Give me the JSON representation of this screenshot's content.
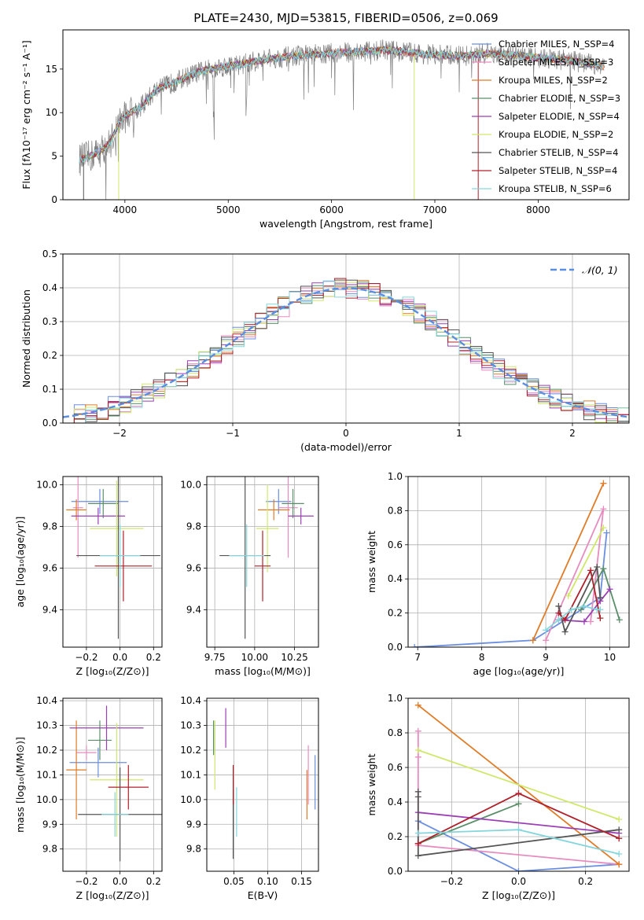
{
  "figure_title": "PLATE=2430, MJD=53815, FIBERID=0506, z=0.069",
  "colors": {
    "chab_miles": "#6b8ee0",
    "salp_miles": "#e68cbf",
    "krou_miles": "#e07b27",
    "chab_elodie": "#5a8f6a",
    "salp_elodie": "#9b3fb5",
    "krou_elodie": "#cfe86a",
    "chab_stelib": "#555555",
    "salp_stelib": "#b0202a",
    "krou_stelib": "#84d6dc"
  },
  "chart_data": [
    {
      "type": "line",
      "panel": "spectrum",
      "xlabel": "wavelength [Angstrom, rest frame]",
      "ylabel": "Flux [fλ10⁻¹⁷ erg cm⁻² s⁻¹ A⁻¹]",
      "xlim": [
        3400,
        8880
      ],
      "ylim": [
        0,
        19.5
      ],
      "xticks": [
        "4000",
        "5000",
        "6000",
        "7000",
        "8000"
      ],
      "yticks": [
        "0",
        "5",
        "10",
        "15"
      ],
      "legend_position": "top-right",
      "legend": [
        {
          "label": "Chabrier MILES, N_SSP=4",
          "color": "#6b8ee0"
        },
        {
          "label": "Salpeter MILES, N_SSP=3",
          "color": "#e68cbf"
        },
        {
          "label": "Kroupa MILES, N_SSP=2",
          "color": "#e07b27"
        },
        {
          "label": "Chabrier ELODIE, N_SSP=3",
          "color": "#5a8f6a"
        },
        {
          "label": "Salpeter ELODIE, N_SSP=4",
          "color": "#9b3fb5"
        },
        {
          "label": "Kroupa ELODIE, N_SSP=2",
          "color": "#cfe86a"
        },
        {
          "label": "Chabrier STELIB, N_SSP=4",
          "color": "#555555"
        },
        {
          "label": "Salpeter STELIB, N_SSP=4",
          "color": "#b0202a"
        },
        {
          "label": "Kroupa STELIB, N_SSP=6",
          "color": "#84d6dc"
        }
      ],
      "continuum": {
        "x": [
          3560,
          3650,
          3750,
          3850,
          3950,
          4050,
          4150,
          4300,
          4500,
          4700,
          4900,
          5100,
          5300,
          5500,
          5700,
          5900,
          6100,
          6300,
          6500,
          6700,
          6900,
          7100,
          7300,
          7500,
          7700,
          7900,
          8100,
          8300,
          8500,
          8640
        ],
        "y": [
          4.6,
          4.9,
          5.5,
          6.4,
          9.0,
          10.0,
          10.6,
          12.6,
          13.6,
          14.6,
          15.2,
          15.5,
          16.0,
          16.3,
          16.6,
          16.7,
          16.9,
          17.0,
          17.2,
          17.0,
          16.7,
          16.6,
          16.5,
          16.8,
          16.7,
          16.4,
          16.2,
          16.0,
          15.6,
          15.3
        ]
      }
    },
    {
      "type": "bar",
      "panel": "residual-histogram",
      "xlabel": "(data-model)/error",
      "ylabel": "Normed distribution",
      "xlim": [
        -2.5,
        2.5
      ],
      "ylim": [
        0,
        0.5
      ],
      "xticks": [
        "−2",
        "−1",
        "0",
        "1",
        "2"
      ],
      "yticks": [
        "0.0",
        "0.1",
        "0.2",
        "0.3",
        "0.4",
        "0.5"
      ],
      "bin_width": 0.1,
      "legend_position": "top-right",
      "legend": [
        {
          "label": "𝒩(0, 1)",
          "color": "#5a8ee0"
        }
      ],
      "reference_curve": "normal(0,1)"
    },
    {
      "type": "scatter",
      "panel": "age-vs-Z",
      "xlabel": "Z [log₁₀(Z/Z⊙)]",
      "ylabel": "age  [log₁₀(age/yr)]",
      "xlim": [
        -0.34,
        0.25
      ],
      "ylim": [
        9.22,
        10.04
      ],
      "xticks": [
        "−0.2",
        "0.0",
        "0.2"
      ],
      "yticks": [
        "9.4",
        "9.6",
        "9.8",
        "10.0"
      ],
      "series": [
        {
          "color": "#6b8ee0",
          "x": -0.12,
          "y": 9.92,
          "xerr": 0.17,
          "yerr": 0.06
        },
        {
          "color": "#e68cbf",
          "x": -0.25,
          "y": 9.89,
          "xerr": 0.03,
          "yerr": 0.24
        },
        {
          "color": "#e07b27",
          "x": -0.26,
          "y": 9.88,
          "xerr": 0.06,
          "yerr": 0.05
        },
        {
          "color": "#5a8f6a",
          "x": -0.1,
          "y": 9.91,
          "xerr": 0.09,
          "yerr": 0.07
        },
        {
          "color": "#9b3fb5",
          "x": -0.13,
          "y": 9.85,
          "xerr": 0.16,
          "yerr": 0.04
        },
        {
          "color": "#cfe86a",
          "x": -0.02,
          "y": 9.79,
          "xerr": 0.16,
          "yerr": 0.23
        },
        {
          "color": "#555555",
          "x": -0.01,
          "y": 9.66,
          "xerr": 0.25,
          "yerr": 0.4
        },
        {
          "color": "#b0202a",
          "x": 0.02,
          "y": 9.61,
          "xerr": 0.17,
          "yerr": 0.17
        },
        {
          "color": "#84d6dc",
          "x": 0.0,
          "y": 9.66,
          "xerr": 0.12,
          "yerr": 0.15
        }
      ]
    },
    {
      "type": "scatter",
      "panel": "age-vs-mass",
      "xlabel": "mass [log₁₀(M/M⊙)]",
      "ylabel": "",
      "xlim": [
        9.7,
        10.4
      ],
      "ylim": [
        9.22,
        10.04
      ],
      "xticks": [
        "9.75",
        "10.00",
        "10.25"
      ],
      "yticks": [
        "9.4",
        "9.6",
        "9.8",
        "10.0"
      ],
      "series": [
        {
          "color": "#6b8ee0",
          "x": 10.15,
          "y": 9.92,
          "xerr": 0.08,
          "yerr": 0.06
        },
        {
          "color": "#e68cbf",
          "x": 10.21,
          "y": 9.89,
          "xerr": 0.06,
          "yerr": 0.24
        },
        {
          "color": "#e07b27",
          "x": 10.12,
          "y": 9.88,
          "xerr": 0.1,
          "yerr": 0.05
        },
        {
          "color": "#5a8f6a",
          "x": 10.24,
          "y": 9.91,
          "xerr": 0.07,
          "yerr": 0.07
        },
        {
          "color": "#9b3fb5",
          "x": 10.29,
          "y": 9.85,
          "xerr": 0.08,
          "yerr": 0.04
        },
        {
          "color": "#cfe86a",
          "x": 10.08,
          "y": 9.79,
          "xerr": 0.07,
          "yerr": 0.21
        },
        {
          "color": "#555555",
          "x": 9.94,
          "y": 9.66,
          "xerr": 0.16,
          "yerr": 0.4
        },
        {
          "color": "#b0202a",
          "x": 10.05,
          "y": 9.61,
          "xerr": 0.05,
          "yerr": 0.17
        },
        {
          "color": "#84d6dc",
          "x": 9.95,
          "y": 9.66,
          "xerr": 0.11,
          "yerr": 0.15
        }
      ]
    },
    {
      "type": "line",
      "panel": "massweight-vs-age",
      "xlabel": "age  [log₁₀(age/yr)]",
      "ylabel": "mass weight",
      "xlim": [
        6.85,
        10.3
      ],
      "ylim": [
        0,
        1.0
      ],
      "xticks": [
        "7",
        "8",
        "9",
        "10"
      ],
      "yticks": [
        "0.0",
        "0.2",
        "0.4",
        "0.6",
        "0.8",
        "1.0"
      ],
      "series": [
        {
          "color": "#6b8ee0",
          "x": [
            6.95,
            8.8,
            9.85,
            9.95
          ],
          "y": [
            0.0,
            0.04,
            0.29,
            0.67
          ]
        },
        {
          "color": "#e68cbf",
          "x": [
            9.0,
            9.9,
            9.7
          ],
          "y": [
            0.04,
            0.81,
            0.15
          ]
        },
        {
          "color": "#e07b27",
          "x": [
            8.8,
            9.9
          ],
          "y": [
            0.04,
            0.96
          ]
        },
        {
          "color": "#5a8f6a",
          "x": [
            9.55,
            9.9,
            10.15
          ],
          "y": [
            0.22,
            0.46,
            0.16
          ]
        },
        {
          "color": "#9b3fb5",
          "x": [
            9.2,
            9.6,
            9.85,
            10.0
          ],
          "y": [
            0.16,
            0.15,
            0.27,
            0.34
          ]
        },
        {
          "color": "#cfe86a",
          "x": [
            9.35,
            9.9
          ],
          "y": [
            0.3,
            0.7
          ]
        },
        {
          "color": "#555555",
          "x": [
            9.2,
            9.3,
            9.8,
            9.85
          ],
          "y": [
            0.24,
            0.09,
            0.47,
            0.29
          ]
        },
        {
          "color": "#b0202a",
          "x": [
            9.2,
            9.3,
            9.7,
            9.85
          ],
          "y": [
            0.2,
            0.16,
            0.45,
            0.17
          ]
        },
        {
          "color": "#84d6dc",
          "x": [
            9.0,
            9.2,
            9.4,
            9.6,
            9.8,
            9.85
          ],
          "y": [
            0.1,
            0.16,
            0.22,
            0.24,
            0.22,
            0.22
          ]
        }
      ]
    },
    {
      "type": "scatter",
      "panel": "mass-vs-Z",
      "xlabel": "Z [log₁₀(Z/Z⊙)]",
      "ylabel": "mass [log₁₀(M/M⊙)]",
      "xlim": [
        -0.34,
        0.25
      ],
      "ylim": [
        9.71,
        10.41
      ],
      "xticks": [
        "−0.2",
        "0.0",
        "0.2"
      ],
      "yticks": [
        "9.8",
        "9.9",
        "10.0",
        "10.1",
        "10.2",
        "10.3",
        "10.4"
      ],
      "series": [
        {
          "color": "#6b8ee0",
          "x": -0.13,
          "y": 10.15,
          "xerr": 0.17,
          "yerr": 0.06
        },
        {
          "color": "#e68cbf",
          "x": -0.2,
          "y": 10.19,
          "xerr": 0.06,
          "yerr": 0.03
        },
        {
          "color": "#e07b27",
          "x": -0.26,
          "y": 10.12,
          "xerr": 0.06,
          "yerr": 0.2
        },
        {
          "color": "#5a8f6a",
          "x": -0.12,
          "y": 10.24,
          "xerr": 0.07,
          "yerr": 0.08
        },
        {
          "color": "#9b3fb5",
          "x": -0.08,
          "y": 10.29,
          "xerr": 0.22,
          "yerr": 0.09
        },
        {
          "color": "#cfe86a",
          "x": -0.02,
          "y": 10.08,
          "xerr": 0.16,
          "yerr": 0.23
        },
        {
          "color": "#555555",
          "x": 0.0,
          "y": 9.94,
          "xerr": 0.25,
          "yerr": 0.19
        },
        {
          "color": "#b0202a",
          "x": 0.05,
          "y": 10.05,
          "xerr": 0.12,
          "yerr": 0.09
        },
        {
          "color": "#84d6dc",
          "x": -0.03,
          "y": 9.94,
          "xerr": 0.08,
          "yerr": 0.09
        }
      ]
    },
    {
      "type": "scatter",
      "panel": "mass-vs-EBV",
      "xlabel": "E(B-V)",
      "ylabel": "",
      "xlim": [
        0.01,
        0.175
      ],
      "ylim": [
        9.71,
        10.41
      ],
      "xticks": [
        "0.05",
        "0.10",
        "0.15"
      ],
      "yticks": [
        "9.8",
        "9.9",
        "10.0",
        "10.1",
        "10.2",
        "10.3",
        "10.4"
      ],
      "series": [
        {
          "color": "#6b8ee0",
          "x": 0.17,
          "y": 10.07,
          "yerr": 0.11
        },
        {
          "color": "#e68cbf",
          "x": 0.16,
          "y": 10.1,
          "yerr": 0.12
        },
        {
          "color": "#e07b27",
          "x": 0.158,
          "y": 10.02,
          "yerr": 0.1
        },
        {
          "color": "#5a8f6a",
          "x": 0.02,
          "y": 10.25,
          "yerr": 0.07
        },
        {
          "color": "#9b3fb5",
          "x": 0.038,
          "y": 10.29,
          "yerr": 0.08
        },
        {
          "color": "#cfe86a",
          "x": 0.022,
          "y": 10.18,
          "yerr": 0.14
        },
        {
          "color": "#555555",
          "x": 0.049,
          "y": 9.9,
          "yerr": 0.14
        },
        {
          "color": "#b0202a",
          "x": 0.049,
          "y": 10.06,
          "yerr": 0.08
        },
        {
          "color": "#84d6dc",
          "x": 0.054,
          "y": 9.95,
          "yerr": 0.1
        }
      ]
    },
    {
      "type": "line",
      "panel": "massweight-vs-Z",
      "xlabel": "Z [log₁₀(Z/Z⊙)]",
      "ylabel": "mass weight",
      "xlim": [
        -0.33,
        0.33
      ],
      "ylim": [
        0,
        1.0
      ],
      "xticks": [
        "−0.2",
        "0.0",
        "0.2"
      ],
      "yticks": [
        "0.0",
        "0.2",
        "0.4",
        "0.6",
        "0.8",
        "1.0"
      ],
      "series": [
        {
          "color": "#6b8ee0",
          "x": [
            -0.3,
            0.0,
            0.3
          ],
          "y": [
            0.29,
            0.0,
            0.04
          ]
        },
        {
          "color": "#e68cbf",
          "x": [
            -0.3,
            -0.3,
            -0.3,
            0.3
          ],
          "y": [
            0.81,
            0.66,
            0.15,
            0.04
          ]
        },
        {
          "color": "#e07b27",
          "x": [
            -0.3,
            0.3
          ],
          "y": [
            0.96,
            0.04
          ]
        },
        {
          "color": "#5a8f6a",
          "x": [
            -0.3,
            0.0
          ],
          "y": [
            0.16,
            0.39
          ]
        },
        {
          "color": "#9b3fb5",
          "x": [
            -0.3,
            0.3
          ],
          "y": [
            0.34,
            0.22
          ]
        },
        {
          "color": "#cfe86a",
          "x": [
            -0.3,
            0.3
          ],
          "y": [
            0.7,
            0.3
          ]
        },
        {
          "color": "#555555",
          "x": [
            -0.3,
            -0.3,
            -0.3,
            0.3
          ],
          "y": [
            0.46,
            0.43,
            0.09,
            0.24
          ]
        },
        {
          "color": "#b0202a",
          "x": [
            -0.3,
            0.0,
            0.3
          ],
          "y": [
            0.16,
            0.45,
            0.19
          ]
        },
        {
          "color": "#84d6dc",
          "x": [
            -0.3,
            0.0,
            0.3
          ],
          "y": [
            0.22,
            0.24,
            0.1
          ]
        }
      ]
    }
  ]
}
